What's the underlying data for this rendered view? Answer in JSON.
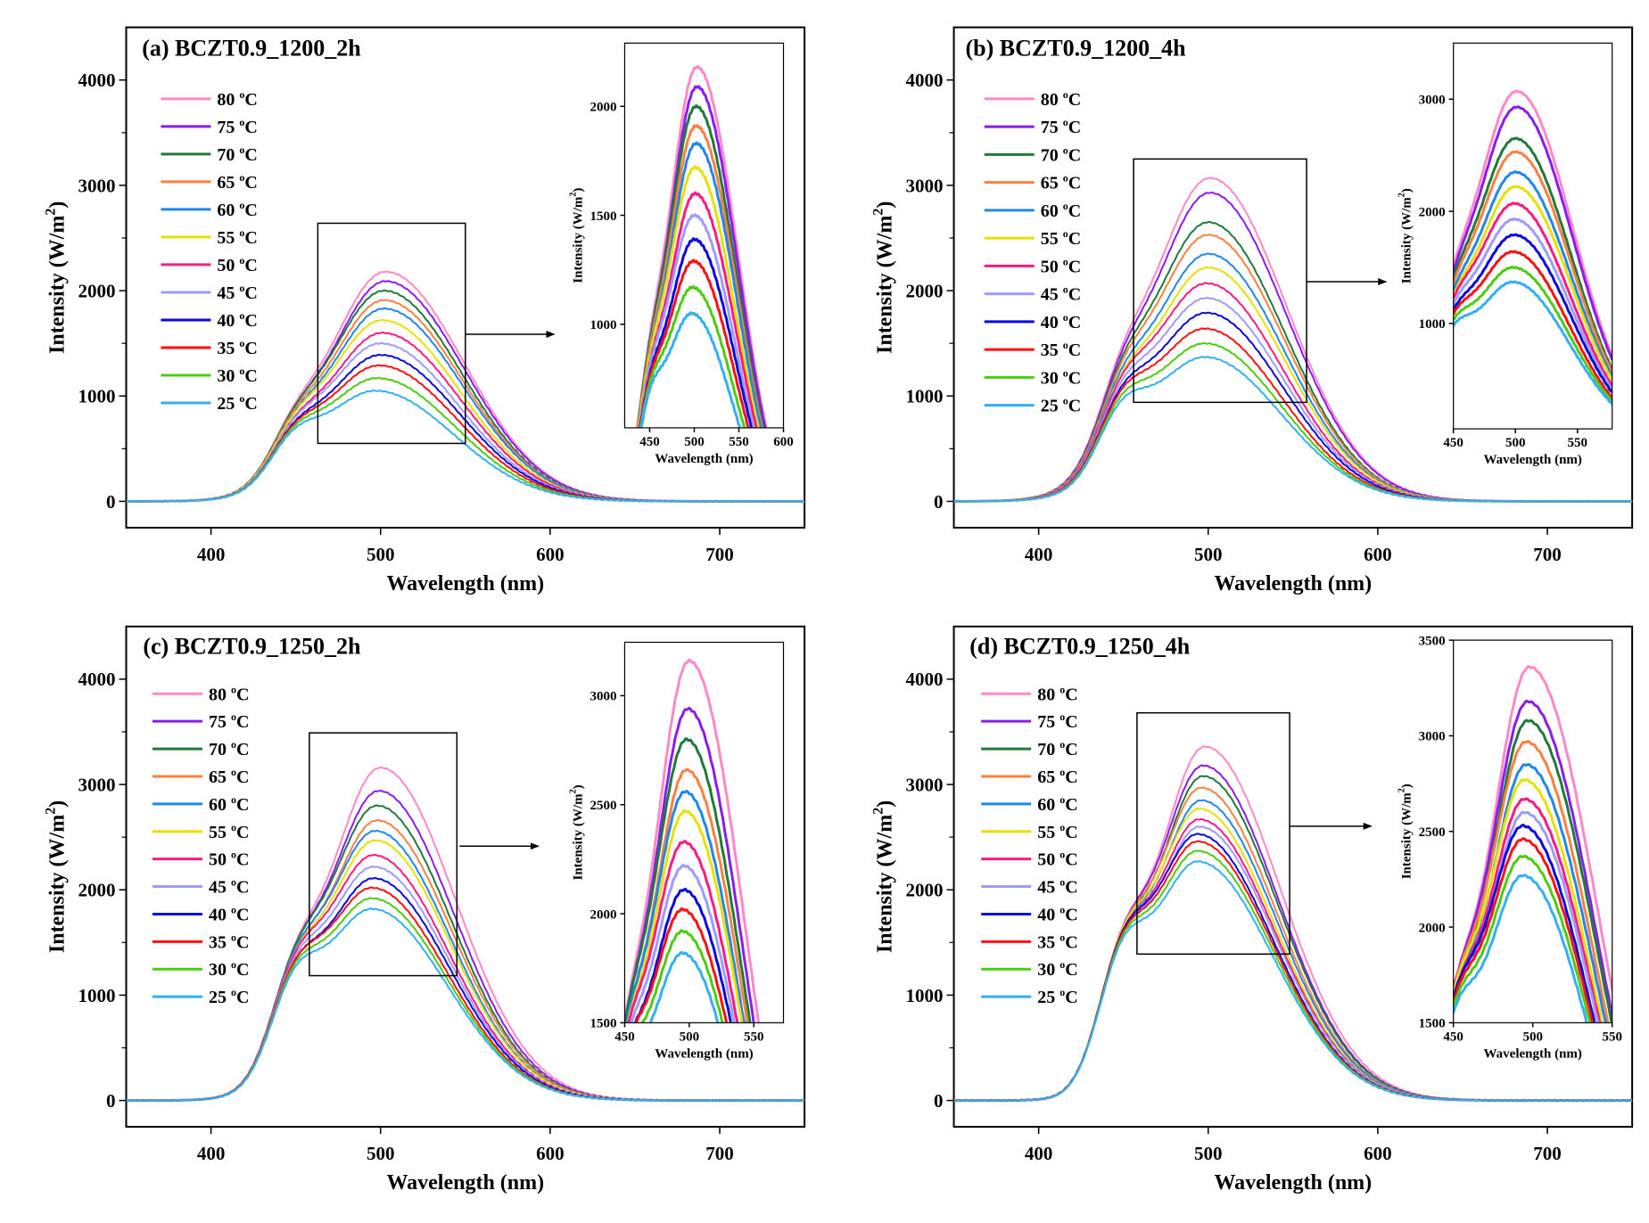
{
  "legend_unit_sup": "o",
  "legend_unit": "C",
  "series_meta": [
    {
      "temp": "80",
      "color": "#ff88c8"
    },
    {
      "temp": "75",
      "color": "#8a1cf0"
    },
    {
      "temp": "70",
      "color": "#1f7a3c"
    },
    {
      "temp": "65",
      "color": "#ff7f40"
    },
    {
      "temp": "60",
      "color": "#1e88f0"
    },
    {
      "temp": "55",
      "color": "#e8e000"
    },
    {
      "temp": "50",
      "color": "#ff1a80"
    },
    {
      "temp": "45",
      "color": "#9c9cff"
    },
    {
      "temp": "40",
      "color": "#0a0ae0"
    },
    {
      "temp": "35",
      "color": "#ff1010"
    },
    {
      "temp": "30",
      "color": "#4ccc10"
    },
    {
      "temp": "25",
      "color": "#33b0f5"
    }
  ],
  "chart_data": [
    {
      "type": "line",
      "title": "(a) BCZT0.9_1200_2h",
      "xlabel": "Wavelength (nm)",
      "ylabel": "Intensity (W/m",
      "ylabel_sup": "2",
      "ylabel_suffix": ")",
      "xlim": [
        350,
        750
      ],
      "ylim": [
        -250,
        4500
      ],
      "xticks": [
        400,
        500,
        600,
        700
      ],
      "yticks": [
        0,
        1000,
        2000,
        3000,
        4000
      ],
      "peak_intensity": [
        2180,
        2090,
        2000,
        1910,
        1830,
        1720,
        1600,
        1500,
        1390,
        1290,
        1170,
        1050
      ],
      "peak_wavelength": [
        503,
        503,
        502,
        502,
        502,
        501,
        501,
        500,
        500,
        499,
        498,
        497
      ],
      "zoom_region": {
        "x": [
          463,
          550
        ],
        "y": [
          550,
          2640
        ]
      },
      "inset": {
        "xlabel": "Wavelength (nm)",
        "ylabel": "Intensity (W/m",
        "ylabel_sup": "2",
        "ylabel_suffix": ")",
        "xlim": [
          422,
          600
        ],
        "ylim": [
          525,
          2290
        ],
        "xticks": [
          450,
          500,
          550,
          600
        ],
        "yticks": [
          1000,
          1500,
          2000
        ]
      }
    },
    {
      "type": "line",
      "title": "(b) BCZT0.9_1200_4h",
      "xlabel": "Wavelength (nm)",
      "ylabel": "Intensity (W/m",
      "ylabel_sup": "2",
      "ylabel_suffix": ")",
      "xlim": [
        350,
        750
      ],
      "ylim": [
        -250,
        4500
      ],
      "xticks": [
        400,
        500,
        600,
        700
      ],
      "yticks": [
        0,
        1000,
        2000,
        3000,
        4000
      ],
      "peak_intensity": [
        3070,
        2930,
        2650,
        2530,
        2350,
        2220,
        2070,
        1930,
        1790,
        1640,
        1500,
        1370
      ],
      "peak_wavelength": [
        501,
        501,
        500,
        500,
        500,
        500,
        499,
        499,
        499,
        498,
        498,
        498
      ],
      "zoom_region": {
        "x": [
          456,
          558
        ],
        "y": [
          940,
          3250
        ]
      },
      "inset": {
        "xlabel": "Wavelength (nm)",
        "ylabel": "Intensity (W/m",
        "ylabel_sup": "2",
        "ylabel_suffix": ")",
        "xlim": [
          450,
          578
        ],
        "ylim": [
          60,
          3500
        ],
        "xticks": [
          450,
          500,
          550
        ],
        "yticks": [
          1000,
          2000,
          3000
        ]
      }
    },
    {
      "type": "line",
      "title": "(c) BCZT0.9_1250_2h",
      "xlabel": "Wavelength (nm)",
      "ylabel": "Intensity (W/m",
      "ylabel_sup": "2",
      "ylabel_suffix": ")",
      "xlim": [
        350,
        750
      ],
      "ylim": [
        -250,
        4500
      ],
      "xticks": [
        400,
        500,
        600,
        700
      ],
      "yticks": [
        0,
        1000,
        2000,
        3000,
        4000
      ],
      "peak_intensity": [
        3160,
        2940,
        2800,
        2660,
        2560,
        2470,
        2330,
        2220,
        2110,
        2020,
        1920,
        1820
      ],
      "peak_wavelength": [
        500,
        499,
        498,
        498,
        497,
        497,
        496,
        496,
        496,
        495,
        495,
        495
      ],
      "zoom_region": {
        "x": [
          458,
          545
        ],
        "y": [
          1185,
          3490
        ]
      },
      "inset": {
        "xlabel": "Wavelength (nm)",
        "ylabel": "Intensity (W/m",
        "ylabel_sup": "2",
        "ylabel_suffix": ")",
        "xlim": [
          450,
          573
        ],
        "ylim": [
          1500,
          3245
        ],
        "xticks": [
          450,
          500,
          550
        ],
        "yticks": [
          1500,
          2000,
          2500,
          3000
        ]
      }
    },
    {
      "type": "line",
      "title": "(d) BCZT0.9_1250_4h",
      "xlabel": "Wavelength (nm)",
      "ylabel": "Intensity (W/m",
      "ylabel_sup": "2",
      "ylabel_suffix": ")",
      "xlim": [
        350,
        750
      ],
      "ylim": [
        -250,
        4500
      ],
      "xticks": [
        400,
        500,
        600,
        700
      ],
      "yticks": [
        0,
        1000,
        2000,
        3000,
        4000
      ],
      "peak_intensity": [
        3360,
        3180,
        3080,
        2970,
        2850,
        2770,
        2670,
        2600,
        2530,
        2460,
        2370,
        2270
      ],
      "peak_wavelength": [
        498,
        497,
        497,
        496,
        496,
        495,
        495,
        495,
        494,
        494,
        494,
        494
      ],
      "zoom_region": {
        "x": [
          458,
          548
        ],
        "y": [
          1390,
          3680
        ]
      },
      "inset": {
        "xlabel": "Wavelength (nm)",
        "ylabel": "Intensity (W/m",
        "ylabel_sup": "2",
        "ylabel_suffix": ")",
        "xlim": [
          450,
          550
        ],
        "ylim": [
          1500,
          3500
        ],
        "xticks": [
          450,
          500,
          550
        ],
        "yticks": [
          1500,
          2000,
          2500,
          3000,
          3500
        ]
      }
    }
  ]
}
